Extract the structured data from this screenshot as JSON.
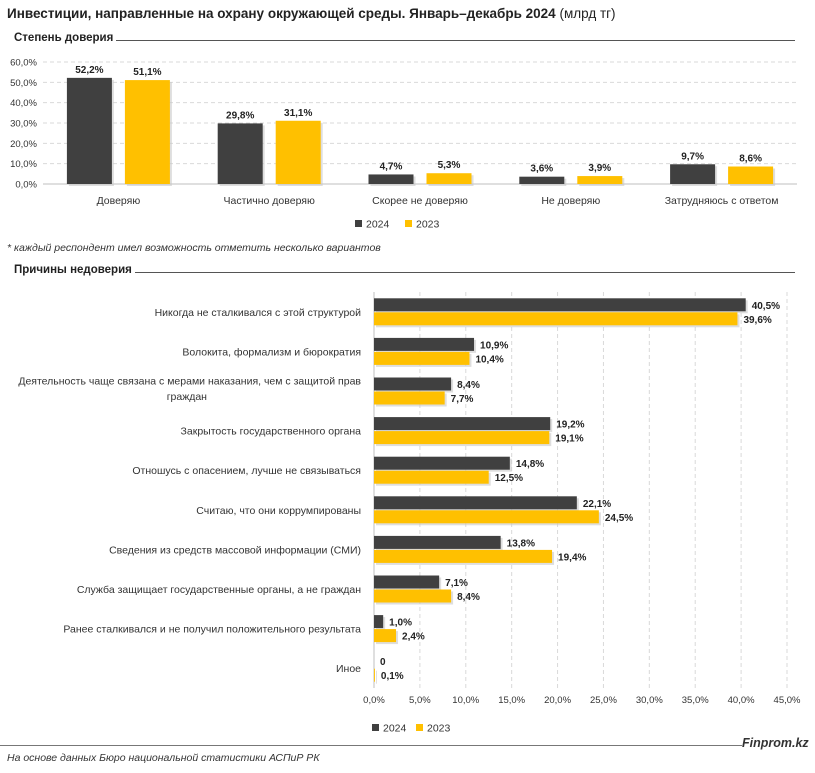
{
  "page": {
    "title": "Инвестиции, направленные на охрану окружающей среды. Январь–декабрь 2024",
    "title_unit": "(млрд тг)",
    "note": "* каждый респондент имел возможность отметить несколько вариантов",
    "source": "На основе данных Бюро национальной статистики АСПиР РК",
    "brand": "Finprom.kz"
  },
  "colors": {
    "series_2024": "#404040",
    "series_2023": "#ffc000"
  },
  "chart_data": [
    {
      "type": "bar",
      "title": "Степень доверия",
      "categories": [
        "Доверяю",
        "Частично доверяю",
        "Скорее не доверяю",
        "Не доверяю",
        "Затрудняюсь с ответом"
      ],
      "series": [
        {
          "name": "2024",
          "values": [
            52.2,
            29.8,
            4.7,
            3.6,
            9.7
          ],
          "labels": [
            "52,2%",
            "29,8%",
            "4,7%",
            "3,6%",
            "9,7%"
          ]
        },
        {
          "name": "2023",
          "values": [
            51.1,
            31.1,
            5.3,
            3.9,
            8.6
          ],
          "labels": [
            "51,1%",
            "31,1%",
            "5,3%",
            "3,9%",
            "8,6%"
          ]
        }
      ],
      "y_ticks": [
        "0,0%",
        "10,0%",
        "20,0%",
        "30,0%",
        "40,0%",
        "50,0%",
        "60,0%"
      ],
      "ylim": [
        0,
        60
      ],
      "grid": true,
      "legend": "bottom-center"
    },
    {
      "type": "bar",
      "orientation": "horizontal",
      "title": "Причины недоверия",
      "categories": [
        "Никогда не сталкивался с этой структурой",
        "Волокита, формализм и бюрократия",
        "Деятельность чаще связана с мерами наказания, чем с защитой прав граждан",
        "Закрытость государственного органа",
        "Отношусь с опасением, лучше не связываться",
        "Считаю, что они коррумпированы",
        "Сведения из средств массовой информации (СМИ)",
        "Служба защищает государственные органы, а не граждан",
        "Ранее сталкивался и не получил положительного результата",
        "Иное"
      ],
      "category_lines": [
        [
          "Никогда не сталкивался с этой структурой"
        ],
        [
          "Волокита, формализм и бюрократия"
        ],
        [
          "Деятельность чаще связана с мерами наказания, чем с защитой прав",
          "граждан"
        ],
        [
          "Закрытость государственного органа"
        ],
        [
          "Отношусь с опасением, лучше не связываться"
        ],
        [
          "Считаю, что они коррумпированы"
        ],
        [
          "Сведения из средств массовой информации (СМИ)"
        ],
        [
          "Служба защищает государственные органы, а не граждан"
        ],
        [
          "Ранее сталкивался и не получил положительного результата"
        ],
        [
          "Иное"
        ]
      ],
      "series": [
        {
          "name": "2024",
          "values": [
            40.5,
            10.9,
            8.4,
            19.2,
            14.8,
            22.1,
            13.8,
            7.1,
            1.0,
            0
          ],
          "labels": [
            "40,5%",
            "10,9%",
            "8,4%",
            "19,2%",
            "14,8%",
            "22,1%",
            "13,8%",
            "7,1%",
            "1,0%",
            "0"
          ]
        },
        {
          "name": "2023",
          "values": [
            39.6,
            10.4,
            7.7,
            19.1,
            12.5,
            24.5,
            19.4,
            8.4,
            2.4,
            0.1
          ],
          "labels": [
            "39,6%",
            "10,4%",
            "7,7%",
            "19,1%",
            "12,5%",
            "24,5%",
            "19,4%",
            "8,4%",
            "2,4%",
            "0,1%"
          ]
        }
      ],
      "x_ticks": [
        "0,0%",
        "5,0%",
        "10,0%",
        "15,0%",
        "20,0%",
        "25,0%",
        "30,0%",
        "35,0%",
        "40,0%",
        "45,0%"
      ],
      "xlim": [
        0,
        45
      ],
      "grid": true,
      "legend": "bottom-left"
    }
  ]
}
